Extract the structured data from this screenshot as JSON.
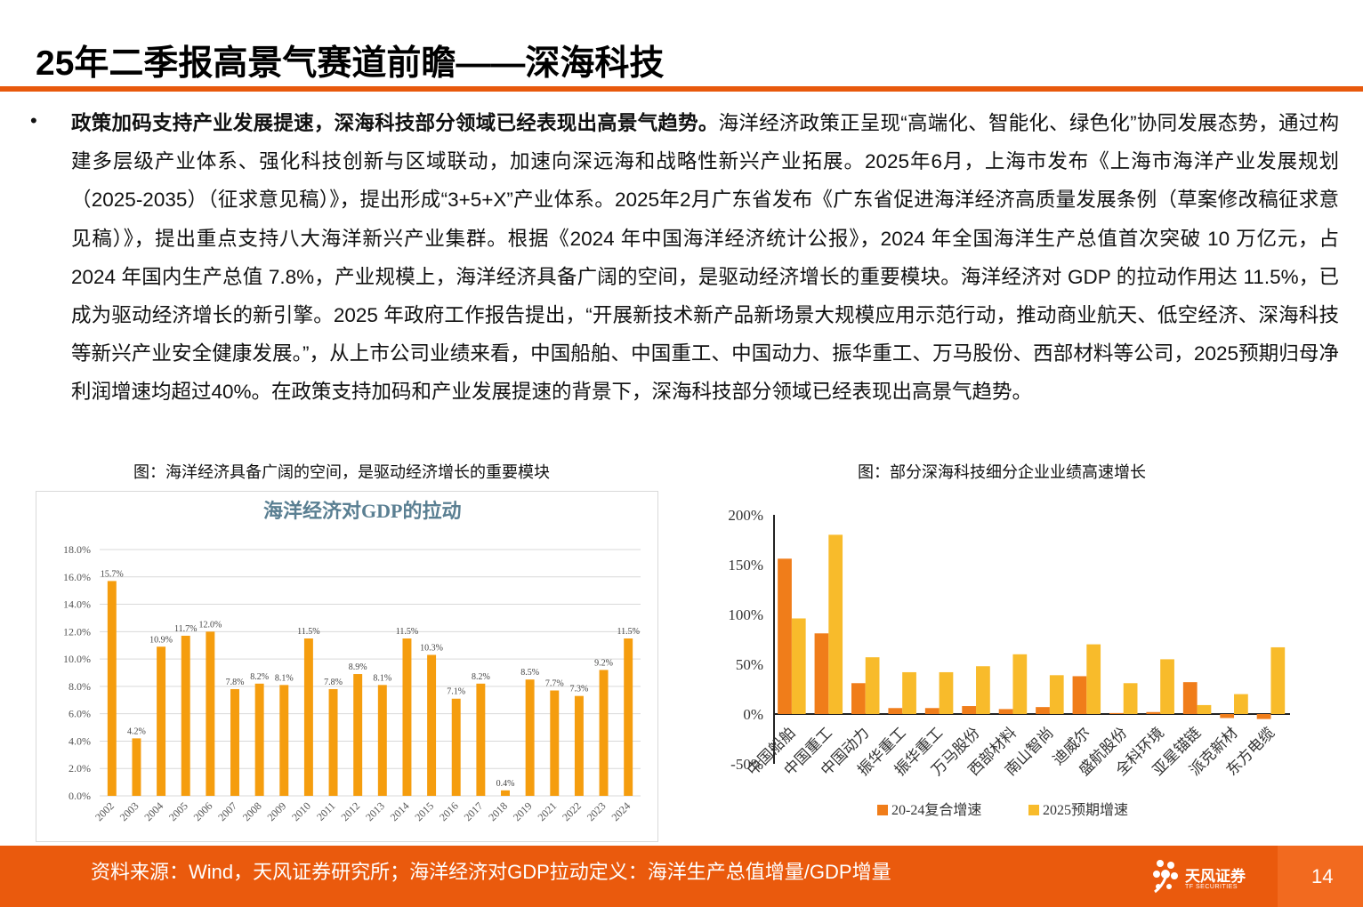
{
  "title": "25年二季报高景气赛道前瞻——深海科技",
  "bullet": {
    "symbol": "•",
    "lead": "政策加码支持产业发展提速，深海科技部分领域已经表现出高景气趋势。",
    "body": "海洋经济政策正呈现“高端化、智能化、绿色化”协同发展态势，通过构建多层级产业体系、强化科技创新与区域联动，加速向深远海和战略性新兴产业拓展。2025年6月，上海市发布《上海市海洋产业发展规划（2025-2035）（征求意见稿）》，提出形成“3+5+X”产业体系。2025年2月广东省发布《广东省促进海洋经济高质量发展条例（草案修改稿征求意见稿）》，提出重点支持八大海洋新兴产业集群。根据《2024 年中国海洋经济统计公报》，2024 年全国海洋生产总值首次突破 10 万亿元，占 2024 年国内生产总值 7.8%，产业规模上，海洋经济具备广阔的空间，是驱动经济增长的重要模块。海洋经济对 GDP 的拉动作用达 11.5%，已成为驱动经济增长的新引擎。2025 年政府工作报告提出，“开展新技术新产品新场景大规模应用示范行动，推动商业航天、低空经济、深海科技等新兴产业安全健康发展。”，从上市公司业绩来看，中国船舶、中国重工、中国动力、振华重工、万马股份、西部材料等公司，2025预期归母净利润增速均超过40%。在政策支持加码和产业发展提速的背景下，深海科技部分领域已经表现出高景气趋势。"
  },
  "captions": {
    "left": "图：海洋经济具备广阔的空间，是驱动经济增长的重要模块",
    "right": "图：部分深海科技细分企业业绩高速增长"
  },
  "footer": {
    "source": "资料来源：Wind，天风证券研究所；海洋经济对GDP拉动定义：海洋生产总值增量/GDP增量",
    "logo_text": "天风证券",
    "logo_sub": "TF SECURITIES",
    "page": "14"
  },
  "colors": {
    "accent": "#ea5a0d",
    "bar_orange": "#f59d0e",
    "bar_dark": "#f07d1a",
    "bar_light": "#f8bb2b"
  },
  "chart_data": [
    {
      "type": "bar",
      "title": "海洋经济对GDP的拉动",
      "categories": [
        "2002",
        "2003",
        "2004",
        "2005",
        "2006",
        "2007",
        "2008",
        "2009",
        "2010",
        "2011",
        "2012",
        "2013",
        "2014",
        "2015",
        "2016",
        "2017",
        "2018",
        "2019",
        "2021",
        "2022",
        "2023",
        "2024"
      ],
      "values": [
        15.7,
        4.2,
        10.9,
        11.7,
        12.0,
        7.8,
        8.2,
        8.1,
        11.5,
        7.8,
        8.9,
        8.1,
        11.5,
        10.3,
        7.1,
        8.2,
        0.4,
        8.5,
        7.7,
        7.3,
        9.2,
        11.5
      ],
      "data_labels": [
        "15.7%",
        "4.2%",
        "10.9%",
        "11.7%",
        "12.0%",
        "7.8%",
        "8.2%",
        "8.1%",
        "11.5%",
        "7.8%",
        "8.9%",
        "8.1%",
        "11.5%",
        "10.3%",
        "7.1%",
        "8.2%",
        "0.4%",
        "8.5%",
        "7.7%",
        "7.3%",
        "9.2%",
        "11.5%"
      ],
      "yticks": [
        "0.0%",
        "2.0%",
        "4.0%",
        "6.0%",
        "8.0%",
        "10.0%",
        "12.0%",
        "14.0%",
        "16.0%",
        "18.0%"
      ],
      "ylim": [
        0,
        18
      ],
      "grid": true
    },
    {
      "type": "bar",
      "categories": [
        "中国船舶",
        "中国重工",
        "中国动力",
        "振华重工",
        "振华重工",
        "万马股份",
        "西部材料",
        "南山智尚",
        "迪威尔",
        "盛航股份",
        "全科环境",
        "亚星锚链",
        "派克新材",
        "东方电缆"
      ],
      "series": [
        {
          "name": "20-24复合增速",
          "values": [
            156,
            81,
            31,
            6,
            6,
            8,
            5,
            7,
            38,
            1,
            2,
            32,
            -4,
            -5
          ]
        },
        {
          "name": "2025预期增速",
          "values": [
            96,
            180,
            57,
            42,
            42,
            48,
            60,
            39,
            70,
            31,
            55,
            9,
            20,
            67
          ]
        }
      ],
      "yticks": [
        "-50%",
        "0%",
        "50%",
        "100%",
        "150%",
        "200%"
      ],
      "ylim": [
        -50,
        200
      ],
      "legend": "bottom",
      "grid": false
    }
  ]
}
